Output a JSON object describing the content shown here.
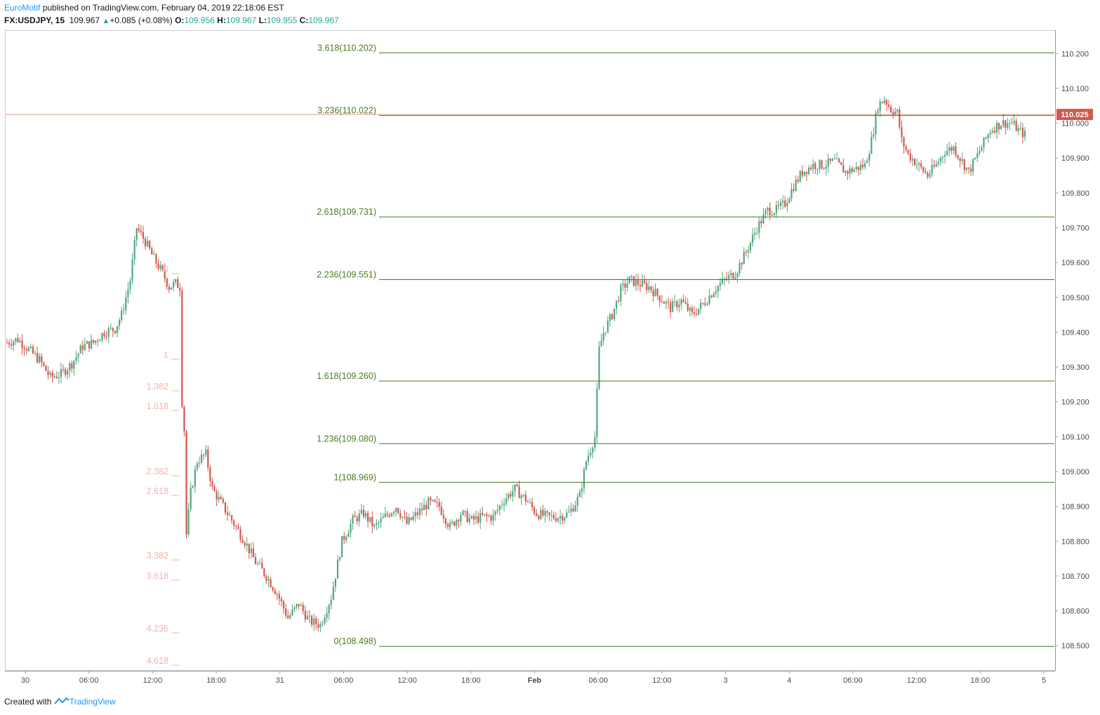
{
  "header": {
    "author": "EuroMotif",
    "published": "published on TradingView.com, February 04, 2019 22:18:06 EST",
    "symbol": "FX:USDJPY, 15",
    "last": "109.967",
    "change": "+0.085 (+0.08%)",
    "open_label": "O:",
    "open": "109.956",
    "high_label": "H:",
    "high": "109.967",
    "low_label": "L:",
    "low": "109.955",
    "close_label": "C:",
    "close": "109.967"
  },
  "footer": {
    "created_with": "Created with",
    "brand": "TradingView"
  },
  "colors": {
    "up": "#53a57f",
    "down": "#d2574c",
    "fib": "#3f7a1e",
    "price_tag": "#d2574c"
  },
  "chart_data": {
    "type": "candlestick",
    "ylim": [
      108.43,
      110.265
    ],
    "y_ticks": [
      "110.200",
      "110.100",
      "110.000",
      "109.900",
      "109.800",
      "109.700",
      "109.600",
      "109.500",
      "109.400",
      "109.300",
      "109.200",
      "109.100",
      "109.000",
      "108.900",
      "108.800",
      "108.700",
      "108.600",
      "108.500"
    ],
    "x_ticks": [
      "30",
      "06:00",
      "12:00",
      "18:00",
      "31",
      "06:00",
      "12:00",
      "18:00",
      "Feb",
      "06:00",
      "12:00",
      "3",
      "4",
      "06:00",
      "12:00",
      "18:00",
      "5"
    ],
    "current_price": {
      "value": 110.025,
      "label": "110.025"
    },
    "fib_levels": [
      {
        "label": "3.618(110.202)",
        "value": 110.202
      },
      {
        "label": "3.236(110.022)",
        "value": 110.022
      },
      {
        "label": "2.618(109.731)",
        "value": 109.731
      },
      {
        "label": "2.236(109.551)",
        "value": 109.551
      },
      {
        "label": "1.618(109.260)",
        "value": 109.26
      },
      {
        "label": "1.236(109.080)",
        "value": 109.08
      },
      {
        "label": "1(108.969)",
        "value": 108.969
      },
      {
        "label": "0(108.498)",
        "value": 108.498
      }
    ],
    "faded_fib_labels": [
      "0",
      "1",
      "1.382",
      "1.618",
      "2.382",
      "2.618",
      "3.382",
      "3.618",
      "4.236",
      "4.618"
    ],
    "path": [
      [
        0,
        109.37
      ],
      [
        5,
        109.38
      ],
      [
        10,
        109.35
      ],
      [
        15,
        109.32
      ],
      [
        20,
        109.27
      ],
      [
        25,
        109.28
      ],
      [
        30,
        109.31
      ],
      [
        35,
        109.36
      ],
      [
        40,
        109.37
      ],
      [
        45,
        109.4
      ],
      [
        50,
        109.41
      ],
      [
        53,
        109.45
      ],
      [
        57,
        109.55
      ],
      [
        60,
        109.7
      ],
      [
        64,
        109.66
      ],
      [
        68,
        109.61
      ],
      [
        72,
        109.57
      ],
      [
        75,
        109.53
      ],
      [
        78,
        109.54
      ],
      [
        80,
        109.53
      ],
      [
        81,
        109.2
      ],
      [
        82,
        109.12
      ],
      [
        83,
        108.82
      ],
      [
        85,
        108.94
      ],
      [
        88,
        109.03
      ],
      [
        92,
        109.05
      ],
      [
        95,
        108.95
      ],
      [
        100,
        108.9
      ],
      [
        105,
        108.85
      ],
      [
        110,
        108.8
      ],
      [
        115,
        108.74
      ],
      [
        120,
        108.7
      ],
      [
        125,
        108.65
      ],
      [
        130,
        108.58
      ],
      [
        135,
        108.62
      ],
      [
        140,
        108.57
      ],
      [
        145,
        108.56
      ],
      [
        150,
        108.64
      ],
      [
        155,
        108.8
      ],
      [
        160,
        108.86
      ],
      [
        165,
        108.88
      ],
      [
        170,
        108.84
      ],
      [
        175,
        108.87
      ],
      [
        180,
        108.9
      ],
      [
        185,
        108.85
      ],
      [
        190,
        108.88
      ],
      [
        195,
        108.91
      ],
      [
        200,
        108.9
      ],
      [
        205,
        108.84
      ],
      [
        210,
        108.88
      ],
      [
        215,
        108.86
      ],
      [
        220,
        108.87
      ],
      [
        225,
        108.87
      ],
      [
        230,
        108.92
      ],
      [
        235,
        108.95
      ],
      [
        240,
        108.92
      ],
      [
        245,
        108.88
      ],
      [
        250,
        108.87
      ],
      [
        255,
        108.87
      ],
      [
        260,
        108.88
      ],
      [
        265,
        108.93
      ],
      [
        268,
        109.03
      ],
      [
        272,
        109.1
      ],
      [
        274,
        109.35
      ],
      [
        276,
        109.4
      ],
      [
        280,
        109.45
      ],
      [
        284,
        109.52
      ],
      [
        288,
        109.55
      ],
      [
        292,
        109.54
      ],
      [
        297,
        109.53
      ],
      [
        302,
        109.5
      ],
      [
        307,
        109.47
      ],
      [
        312,
        109.49
      ],
      [
        317,
        109.45
      ],
      [
        322,
        109.48
      ],
      [
        327,
        109.52
      ],
      [
        332,
        109.55
      ],
      [
        337,
        109.57
      ],
      [
        342,
        109.63
      ],
      [
        347,
        109.7
      ],
      [
        352,
        109.75
      ],
      [
        356,
        109.75
      ],
      [
        360,
        109.77
      ],
      [
        364,
        109.82
      ],
      [
        368,
        109.86
      ],
      [
        373,
        109.88
      ],
      [
        378,
        109.88
      ],
      [
        383,
        109.89
      ],
      [
        388,
        109.86
      ],
      [
        393,
        109.87
      ],
      [
        397,
        109.88
      ],
      [
        400,
        109.95
      ],
      [
        403,
        110.05
      ],
      [
        406,
        110.07
      ],
      [
        409,
        110.04
      ],
      [
        412,
        110.03
      ],
      [
        414,
        109.95
      ],
      [
        417,
        109.91
      ],
      [
        420,
        109.89
      ],
      [
        423,
        109.87
      ],
      [
        426,
        109.85
      ],
      [
        430,
        109.88
      ],
      [
        434,
        109.92
      ],
      [
        438,
        109.93
      ],
      [
        442,
        109.89
      ],
      [
        445,
        109.86
      ],
      [
        450,
        109.92
      ],
      [
        455,
        109.98
      ],
      [
        460,
        110.0
      ],
      [
        465,
        110.0
      ],
      [
        468,
        109.98
      ],
      [
        471,
        109.967
      ]
    ]
  }
}
